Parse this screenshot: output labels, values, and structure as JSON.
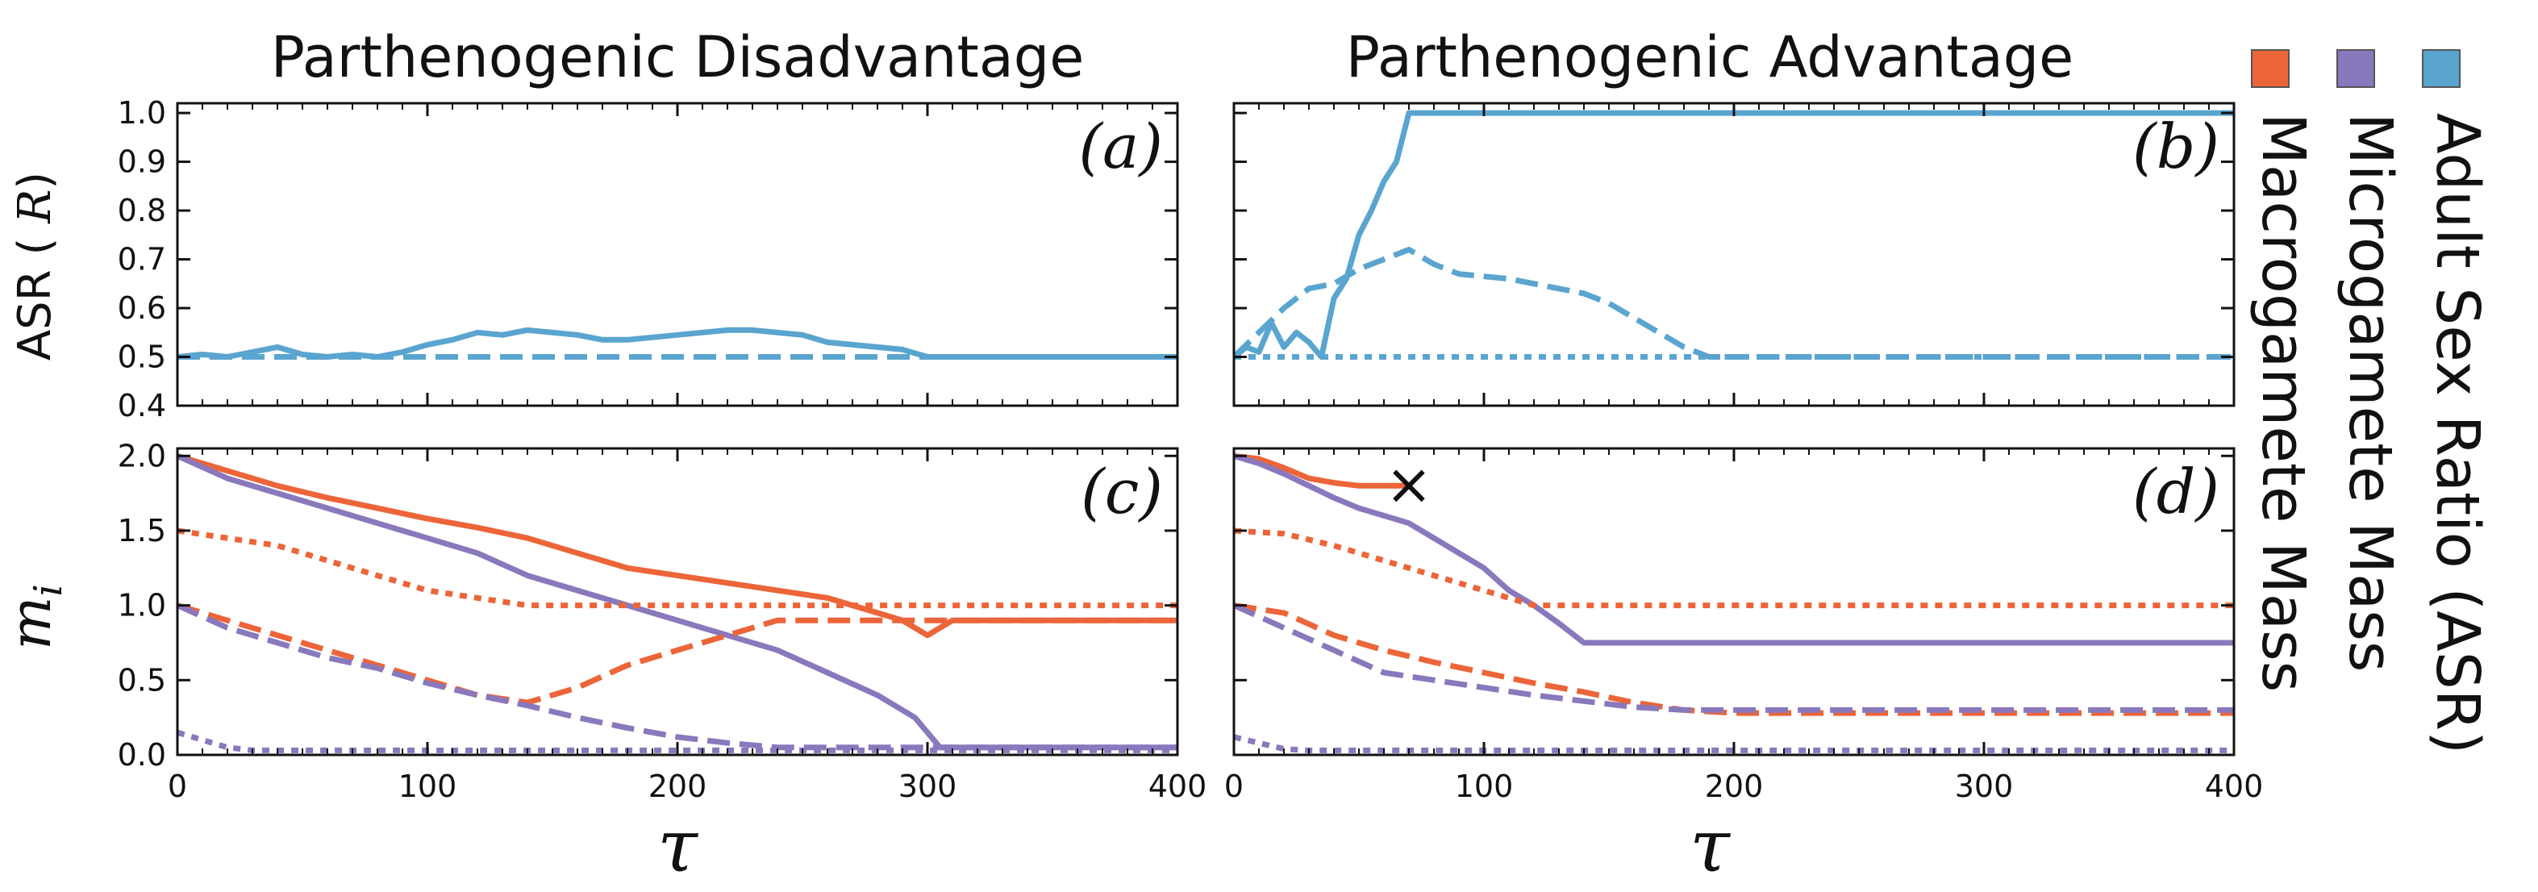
{
  "colors": {
    "adult_sex_ratio": "#5aa5cf",
    "microgamete": "#8a78bd",
    "macrogamete": "#ec6539"
  },
  "legend": [
    {
      "label": "Adult Sex Ratio (ASR)",
      "color": "#5aa5cf",
      "swatch": "asr-swatch"
    },
    {
      "label": "Microgamete Mass",
      "color": "#8a78bd",
      "swatch": "micro-swatch"
    },
    {
      "label": "Macrogamete Mass",
      "color": "#ec6539",
      "swatch": "macro-swatch"
    }
  ],
  "chart_data": [
    {
      "id": "a",
      "type": "line",
      "panel_label": "(a)",
      "title": "Parthenogenic Disadvantage",
      "ylabel": "ASR (R)",
      "xlabel": "",
      "xlim": [
        0,
        400
      ],
      "ylim": [
        0.4,
        1.02
      ],
      "x_ticks": [
        0,
        100,
        200,
        300,
        400
      ],
      "y_ticks": [
        0.4,
        0.5,
        0.6,
        0.7,
        0.8,
        0.9,
        1.0
      ],
      "y_tick_labels": [
        "0.4",
        "0.5",
        "0.6",
        "0.7",
        "0.8",
        "0.9",
        "1.0"
      ],
      "show_x_tick_labels": false,
      "series": [
        {
          "name": "ASR",
          "color": "asr",
          "dash": "solid",
          "x": [
            0,
            10,
            20,
            30,
            40,
            50,
            60,
            70,
            80,
            90,
            100,
            110,
            120,
            130,
            140,
            150,
            160,
            170,
            180,
            190,
            200,
            210,
            220,
            230,
            240,
            250,
            260,
            270,
            280,
            290,
            300,
            400
          ],
          "y": [
            0.5,
            0.505,
            0.5,
            0.51,
            0.52,
            0.505,
            0.5,
            0.505,
            0.5,
            0.51,
            0.525,
            0.535,
            0.55,
            0.545,
            0.555,
            0.55,
            0.545,
            0.535,
            0.535,
            0.54,
            0.545,
            0.55,
            0.555,
            0.555,
            0.55,
            0.545,
            0.53,
            0.525,
            0.52,
            0.515,
            0.5,
            0.5
          ]
        },
        {
          "name": "ASR (dashed)",
          "color": "asr",
          "dash": "dashed",
          "x": [
            0,
            50,
            100,
            200,
            300,
            400
          ],
          "y": [
            0.5,
            0.5,
            0.5,
            0.5,
            0.5,
            0.5
          ]
        }
      ]
    },
    {
      "id": "b",
      "type": "line",
      "panel_label": "(b)",
      "title": "Parthenogenic Advantage",
      "ylabel": "",
      "xlabel": "",
      "xlim": [
        0,
        400
      ],
      "ylim": [
        0.4,
        1.02
      ],
      "x_ticks": [
        0,
        100,
        200,
        300,
        400
      ],
      "y_ticks": [
        0.4,
        0.5,
        0.6,
        0.7,
        0.8,
        0.9,
        1.0
      ],
      "show_x_tick_labels": false,
      "show_y_tick_labels": false,
      "series": [
        {
          "name": "ASR",
          "color": "asr",
          "dash": "solid",
          "x": [
            0,
            5,
            10,
            15,
            20,
            25,
            30,
            35,
            40,
            45,
            50,
            55,
            60,
            65,
            70,
            75,
            80,
            400
          ],
          "y": [
            0.5,
            0.52,
            0.51,
            0.57,
            0.52,
            0.55,
            0.53,
            0.5,
            0.62,
            0.66,
            0.75,
            0.8,
            0.86,
            0.9,
            1.0,
            1.0,
            1.0,
            1.0
          ]
        },
        {
          "name": "ASR (dashed)",
          "color": "asr",
          "dash": "dashed",
          "x": [
            0,
            10,
            20,
            30,
            40,
            50,
            60,
            70,
            80,
            90,
            100,
            110,
            120,
            130,
            140,
            150,
            160,
            170,
            180,
            190,
            200,
            400
          ],
          "y": [
            0.5,
            0.55,
            0.6,
            0.64,
            0.65,
            0.68,
            0.7,
            0.72,
            0.69,
            0.67,
            0.665,
            0.66,
            0.65,
            0.64,
            0.63,
            0.61,
            0.58,
            0.55,
            0.52,
            0.5,
            0.5,
            0.5
          ]
        },
        {
          "name": "ASR (dotted)",
          "color": "asr",
          "dash": "dotted",
          "x": [
            0,
            100,
            200,
            300,
            400
          ],
          "y": [
            0.5,
            0.5,
            0.5,
            0.5,
            0.5
          ]
        }
      ]
    },
    {
      "id": "c",
      "type": "line",
      "panel_label": "(c)",
      "title": "",
      "ylabel": "m_i",
      "xlabel": "τ",
      "xlim": [
        0,
        400
      ],
      "ylim": [
        0,
        2.05
      ],
      "x_ticks": [
        0,
        100,
        200,
        300,
        400
      ],
      "x_tick_labels": [
        "0",
        "100",
        "200",
        "300",
        "400"
      ],
      "y_ticks": [
        0,
        0.5,
        1.0,
        1.5,
        2.0
      ],
      "y_tick_labels": [
        "0.0",
        "0.5",
        "1.0",
        "1.5",
        "2.0"
      ],
      "series": [
        {
          "name": "Macrogamete Mass",
          "color": "macro",
          "dash": "solid",
          "x": [
            0,
            20,
            40,
            60,
            80,
            100,
            120,
            140,
            160,
            180,
            200,
            220,
            240,
            260,
            280,
            290,
            300,
            310,
            320,
            400
          ],
          "y": [
            2.0,
            1.9,
            1.8,
            1.72,
            1.65,
            1.58,
            1.52,
            1.45,
            1.35,
            1.25,
            1.2,
            1.15,
            1.1,
            1.05,
            0.95,
            0.9,
            0.8,
            0.9,
            0.9,
            0.9
          ]
        },
        {
          "name": "Microgamete Mass",
          "color": "micro",
          "dash": "solid",
          "x": [
            0,
            20,
            40,
            60,
            80,
            100,
            120,
            140,
            160,
            180,
            200,
            220,
            240,
            260,
            280,
            295,
            305,
            320,
            400
          ],
          "y": [
            2.0,
            1.85,
            1.75,
            1.65,
            1.55,
            1.45,
            1.35,
            1.2,
            1.1,
            1.0,
            0.9,
            0.8,
            0.7,
            0.55,
            0.4,
            0.25,
            0.05,
            0.05,
            0.05
          ]
        },
        {
          "name": "Macrogamete Mass (dotted)",
          "color": "macro",
          "dash": "dotted",
          "x": [
            0,
            20,
            40,
            60,
            80,
            100,
            120,
            140,
            160,
            180,
            200,
            400
          ],
          "y": [
            1.5,
            1.45,
            1.4,
            1.3,
            1.2,
            1.1,
            1.05,
            1.0,
            1.0,
            1.0,
            1.0,
            1.0
          ]
        },
        {
          "name": "Macrogamete Mass (dashed)",
          "color": "macro",
          "dash": "dashed",
          "x": [
            0,
            20,
            40,
            60,
            80,
            100,
            120,
            140,
            160,
            180,
            200,
            220,
            240,
            260,
            280,
            400
          ],
          "y": [
            1.0,
            0.9,
            0.8,
            0.7,
            0.6,
            0.5,
            0.4,
            0.35,
            0.45,
            0.6,
            0.7,
            0.8,
            0.9,
            0.9,
            0.9,
            0.9
          ]
        },
        {
          "name": "Microgamete Mass (dashed)",
          "color": "micro",
          "dash": "dashed",
          "x": [
            0,
            20,
            40,
            60,
            80,
            100,
            120,
            140,
            160,
            180,
            200,
            220,
            240,
            260,
            280,
            400
          ],
          "y": [
            1.0,
            0.85,
            0.75,
            0.65,
            0.58,
            0.48,
            0.4,
            0.33,
            0.25,
            0.18,
            0.12,
            0.08,
            0.05,
            0.05,
            0.05,
            0.05
          ]
        },
        {
          "name": "Microgamete Mass (dotted)",
          "color": "micro",
          "dash": "dotted",
          "x": [
            0,
            10,
            20,
            30,
            50,
            100,
            200,
            300,
            400
          ],
          "y": [
            0.15,
            0.1,
            0.05,
            0.03,
            0.03,
            0.03,
            0.03,
            0.03,
            0.03
          ]
        }
      ]
    },
    {
      "id": "d",
      "type": "line",
      "panel_label": "(d)",
      "title": "",
      "ylabel": "",
      "xlabel": "τ",
      "xlim": [
        0,
        400
      ],
      "ylim": [
        0,
        2.05
      ],
      "x_ticks": [
        0,
        100,
        200,
        300,
        400
      ],
      "x_tick_labels": [
        "0",
        "100",
        "200",
        "300",
        "400"
      ],
      "y_ticks": [
        0,
        0.5,
        1.0,
        1.5,
        2.0
      ],
      "show_y_tick_labels": false,
      "marker": {
        "x": 70,
        "y": 1.8,
        "symbol": "×"
      },
      "series": [
        {
          "name": "Macrogamete Mass",
          "color": "macro",
          "dash": "solid",
          "x": [
            0,
            10,
            20,
            30,
            40,
            50,
            60,
            70
          ],
          "y": [
            2.0,
            1.98,
            1.92,
            1.85,
            1.82,
            1.8,
            1.8,
            1.8
          ]
        },
        {
          "name": "Microgamete Mass",
          "color": "micro",
          "dash": "solid",
          "x": [
            0,
            10,
            20,
            30,
            40,
            50,
            60,
            70,
            80,
            90,
            100,
            110,
            120,
            130,
            140,
            150,
            200,
            400
          ],
          "y": [
            2.0,
            1.95,
            1.88,
            1.8,
            1.72,
            1.65,
            1.6,
            1.55,
            1.45,
            1.35,
            1.25,
            1.1,
            1.0,
            0.88,
            0.75,
            0.75,
            0.75,
            0.75
          ]
        },
        {
          "name": "Macrogamete Mass (dotted)",
          "color": "macro",
          "dash": "dotted",
          "x": [
            0,
            20,
            40,
            60,
            80,
            100,
            120,
            140,
            200,
            400
          ],
          "y": [
            1.5,
            1.48,
            1.4,
            1.3,
            1.2,
            1.1,
            1.0,
            1.0,
            1.0,
            1.0
          ]
        },
        {
          "name": "Macrogamete Mass (dashed)",
          "color": "macro",
          "dash": "dashed",
          "x": [
            0,
            20,
            40,
            60,
            80,
            100,
            120,
            140,
            160,
            180,
            200,
            400
          ],
          "y": [
            1.0,
            0.95,
            0.8,
            0.7,
            0.62,
            0.55,
            0.48,
            0.42,
            0.35,
            0.3,
            0.28,
            0.28
          ]
        },
        {
          "name": "Microgamete Mass (dashed)",
          "color": "micro",
          "dash": "dashed",
          "x": [
            0,
            20,
            40,
            60,
            80,
            100,
            120,
            140,
            160,
            180,
            200,
            400
          ],
          "y": [
            1.0,
            0.85,
            0.7,
            0.55,
            0.5,
            0.45,
            0.4,
            0.36,
            0.32,
            0.3,
            0.3,
            0.3
          ]
        },
        {
          "name": "Microgamete Mass (dotted)",
          "color": "micro",
          "dash": "dotted",
          "x": [
            0,
            10,
            20,
            30,
            50,
            100,
            200,
            300,
            400
          ],
          "y": [
            0.12,
            0.08,
            0.04,
            0.03,
            0.03,
            0.03,
            0.03,
            0.03,
            0.03
          ]
        }
      ]
    }
  ]
}
